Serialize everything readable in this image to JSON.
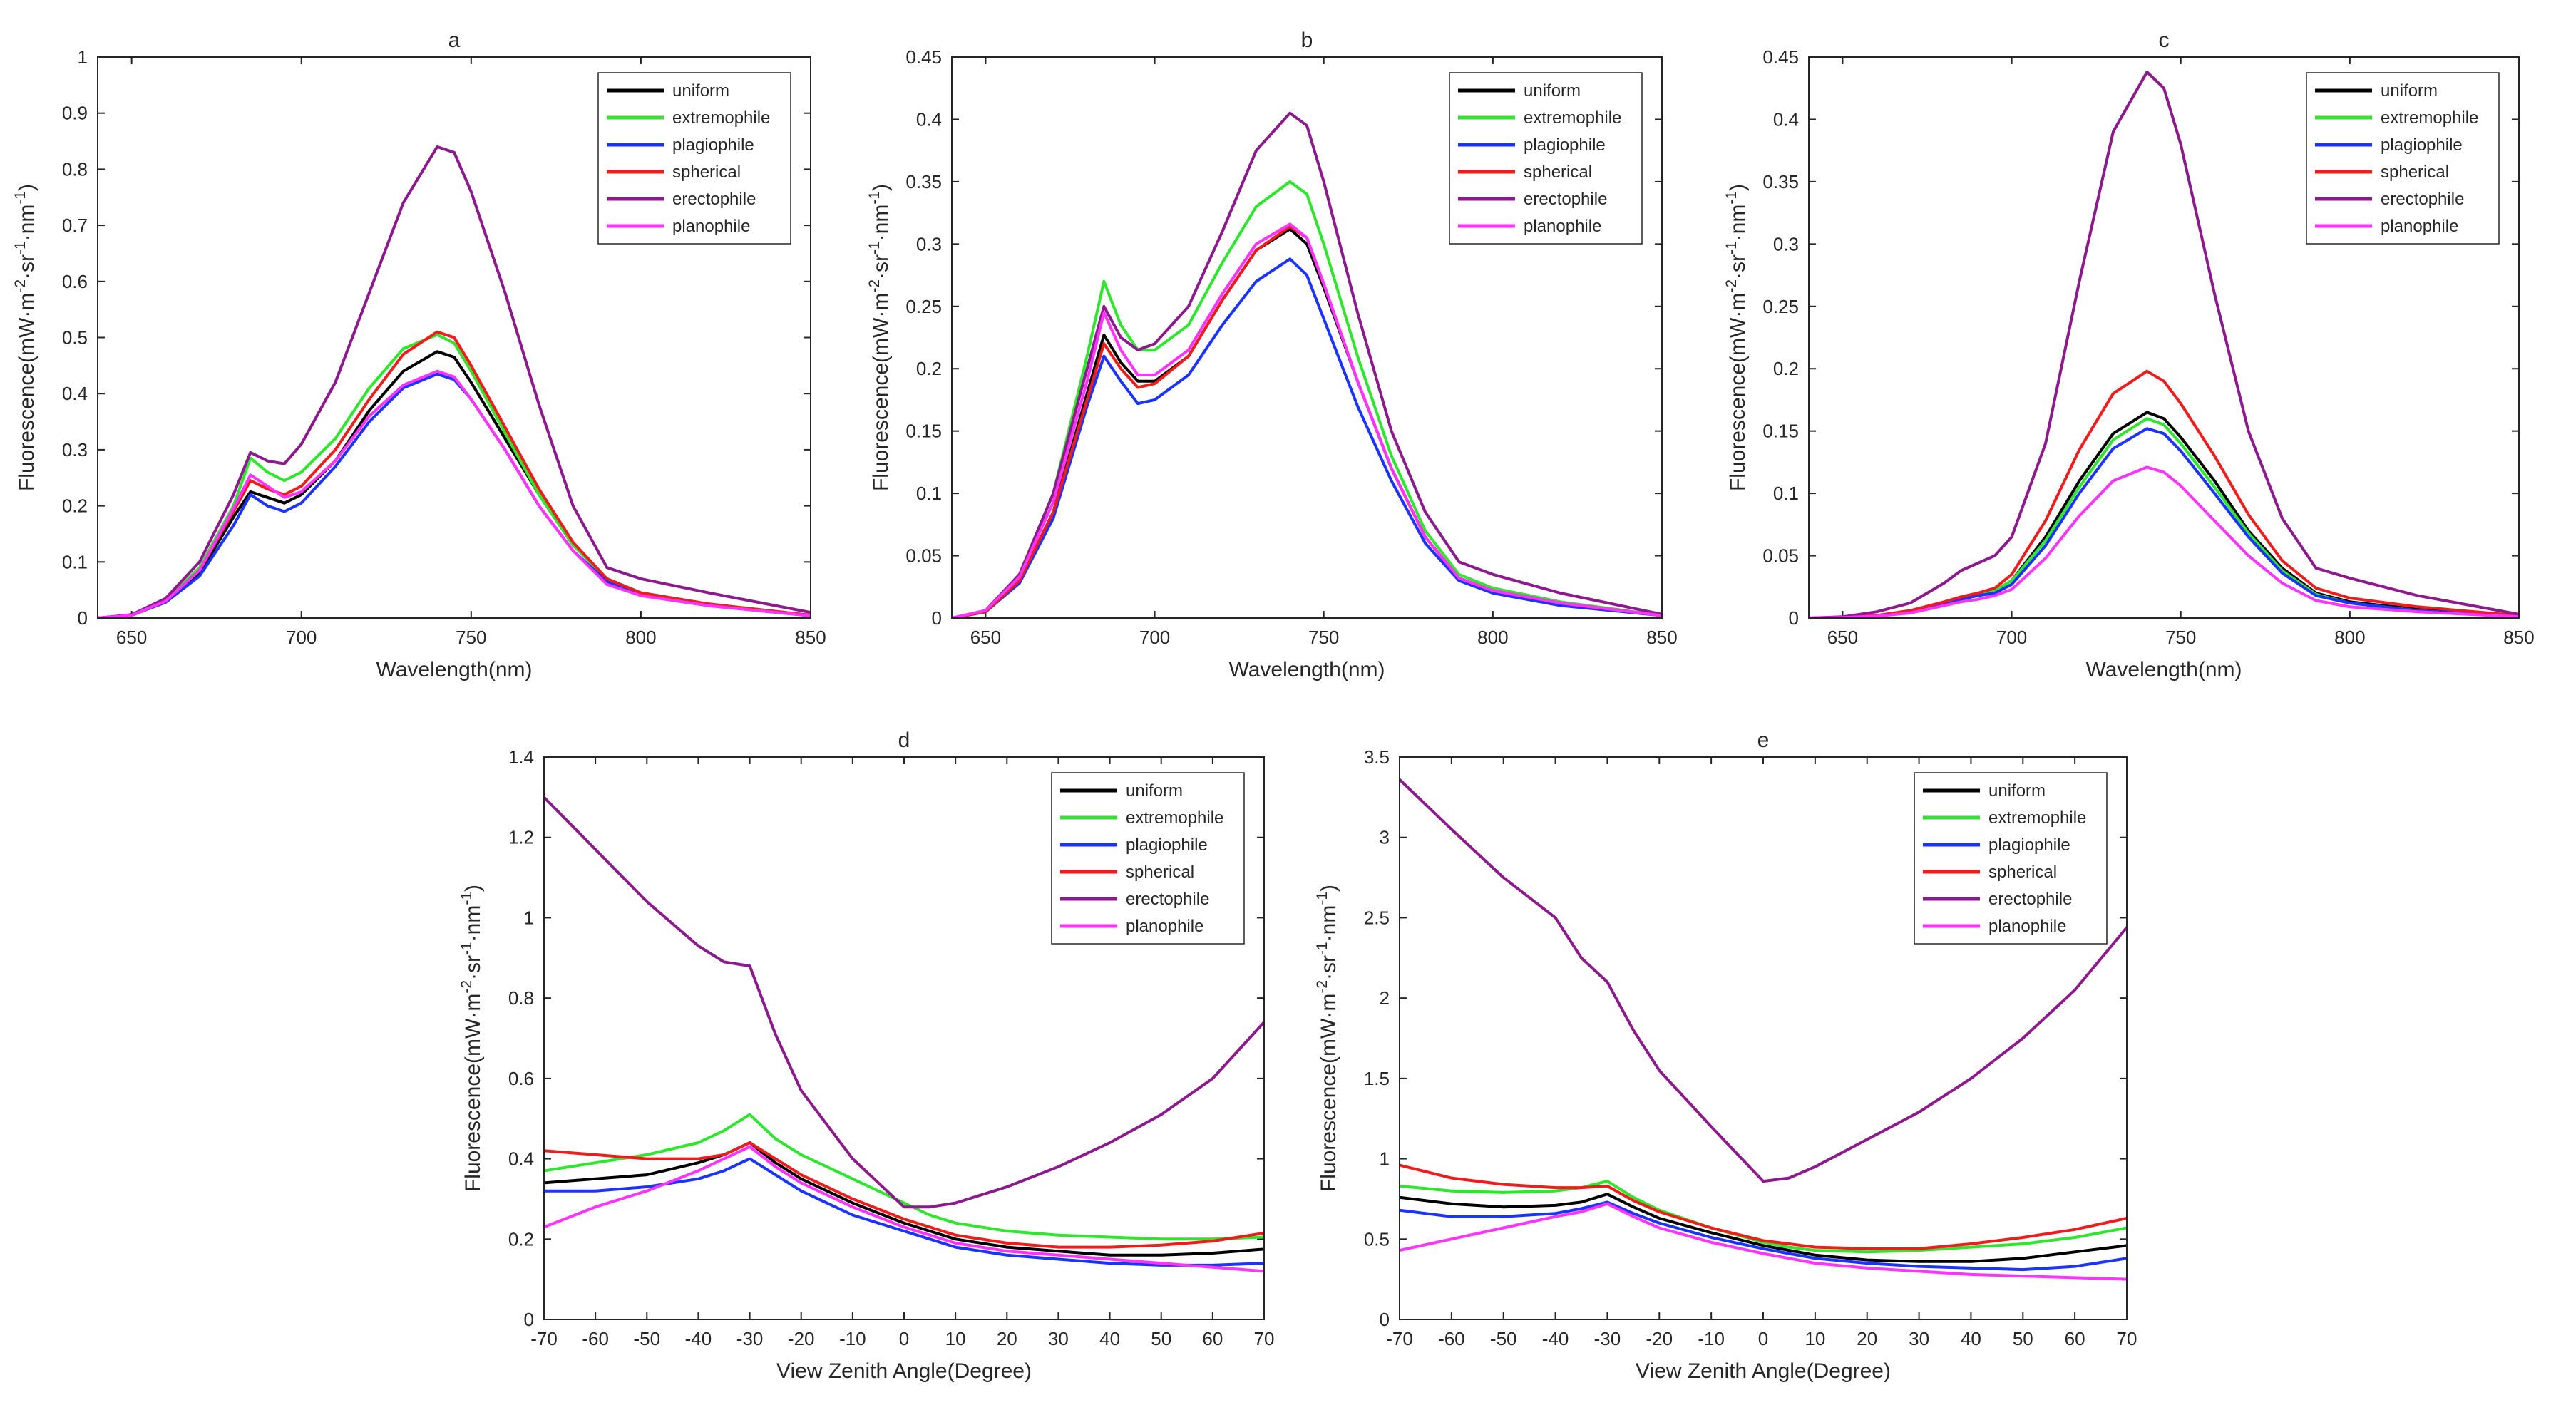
{
  "figure": {
    "legend_entries": [
      "uniform",
      "extremophile",
      "plagiophile",
      "spherical",
      "erectophile",
      "planophile"
    ],
    "legend_colors": [
      "#000000",
      "#2ee62e",
      "#1a33ff",
      "#f01c1c",
      "#8c1a8c",
      "#ff33ff"
    ]
  },
  "chart_data": [
    {
      "type": "line",
      "title": "a",
      "xlabel": "Wavelength(nm)",
      "ylabel": "Fluorescence(mW·m⁻²·sr⁻¹·nm⁻¹)",
      "xlim": [
        640,
        850
      ],
      "ylim": [
        0,
        1
      ],
      "xticks": [
        650,
        700,
        750,
        800,
        850
      ],
      "yticks": [
        0,
        0.1,
        0.2,
        0.3,
        0.4,
        0.5,
        0.6,
        0.7,
        0.8,
        0.9,
        1
      ],
      "legend_position": "top-right",
      "x": [
        640,
        650,
        660,
        670,
        680,
        685,
        690,
        695,
        700,
        710,
        720,
        730,
        740,
        745,
        750,
        760,
        770,
        780,
        790,
        800,
        820,
        850
      ],
      "series": [
        {
          "name": "uniform",
          "color": "#000000",
          "values": [
            0,
            0.005,
            0.03,
            0.08,
            0.18,
            0.225,
            0.215,
            0.205,
            0.22,
            0.28,
            0.37,
            0.44,
            0.475,
            0.465,
            0.42,
            0.32,
            0.22,
            0.13,
            0.07,
            0.045,
            0.025,
            0.005
          ]
        },
        {
          "name": "extremophile",
          "color": "#2ee62e",
          "values": [
            0,
            0.005,
            0.032,
            0.09,
            0.2,
            0.285,
            0.26,
            0.245,
            0.26,
            0.32,
            0.41,
            0.48,
            0.505,
            0.49,
            0.44,
            0.33,
            0.22,
            0.13,
            0.07,
            0.045,
            0.025,
            0.005
          ]
        },
        {
          "name": "plagiophile",
          "color": "#1a33ff",
          "values": [
            0,
            0.005,
            0.028,
            0.075,
            0.165,
            0.22,
            0.2,
            0.19,
            0.205,
            0.27,
            0.35,
            0.41,
            0.435,
            0.425,
            0.39,
            0.3,
            0.2,
            0.12,
            0.065,
            0.04,
            0.022,
            0.004
          ]
        },
        {
          "name": "spherical",
          "color": "#f01c1c",
          "values": [
            0,
            0.005,
            0.03,
            0.085,
            0.19,
            0.245,
            0.23,
            0.22,
            0.235,
            0.3,
            0.39,
            0.47,
            0.51,
            0.5,
            0.45,
            0.34,
            0.23,
            0.135,
            0.07,
            0.045,
            0.025,
            0.005
          ]
        },
        {
          "name": "erectophile",
          "color": "#8c1a8c",
          "values": [
            0,
            0.006,
            0.035,
            0.1,
            0.22,
            0.295,
            0.28,
            0.275,
            0.31,
            0.42,
            0.58,
            0.74,
            0.84,
            0.83,
            0.76,
            0.58,
            0.38,
            0.2,
            0.09,
            0.07,
            0.045,
            0.01
          ]
        },
        {
          "name": "planophile",
          "color": "#ff33ff",
          "values": [
            0,
            0.005,
            0.03,
            0.085,
            0.195,
            0.255,
            0.235,
            0.215,
            0.225,
            0.28,
            0.36,
            0.415,
            0.44,
            0.43,
            0.39,
            0.3,
            0.2,
            0.12,
            0.06,
            0.04,
            0.022,
            0.004
          ]
        }
      ]
    },
    {
      "type": "line",
      "title": "b",
      "xlabel": "Wavelength(nm)",
      "ylabel": "Fluorescence(mW·m⁻²·sr⁻¹·nm⁻¹)",
      "xlim": [
        640,
        850
      ],
      "ylim": [
        0,
        0.45
      ],
      "xticks": [
        650,
        700,
        750,
        800,
        850
      ],
      "yticks": [
        0,
        0.05,
        0.1,
        0.15,
        0.2,
        0.25,
        0.3,
        0.35,
        0.4,
        0.45
      ],
      "legend_position": "top-right",
      "x": [
        640,
        650,
        660,
        670,
        680,
        685,
        690,
        695,
        700,
        710,
        720,
        730,
        740,
        745,
        750,
        760,
        770,
        780,
        790,
        800,
        820,
        850
      ],
      "series": [
        {
          "name": "uniform",
          "color": "#000000",
          "values": [
            0,
            0.005,
            0.03,
            0.085,
            0.18,
            0.227,
            0.205,
            0.19,
            0.19,
            0.21,
            0.255,
            0.295,
            0.312,
            0.3,
            0.265,
            0.19,
            0.12,
            0.065,
            0.032,
            0.022,
            0.012,
            0.002
          ]
        },
        {
          "name": "extremophile",
          "color": "#2ee62e",
          "values": [
            0,
            0.006,
            0.035,
            0.1,
            0.21,
            0.27,
            0.235,
            0.215,
            0.215,
            0.235,
            0.285,
            0.33,
            0.35,
            0.34,
            0.3,
            0.21,
            0.13,
            0.07,
            0.035,
            0.024,
            0.013,
            0.002
          ]
        },
        {
          "name": "plagiophile",
          "color": "#1a33ff",
          "values": [
            0,
            0.005,
            0.028,
            0.08,
            0.17,
            0.21,
            0.19,
            0.172,
            0.175,
            0.195,
            0.235,
            0.27,
            0.288,
            0.275,
            0.24,
            0.17,
            0.11,
            0.06,
            0.03,
            0.02,
            0.01,
            0.002
          ]
        },
        {
          "name": "spherical",
          "color": "#f01c1c",
          "values": [
            0,
            0.005,
            0.03,
            0.085,
            0.175,
            0.22,
            0.2,
            0.185,
            0.188,
            0.21,
            0.255,
            0.295,
            0.314,
            0.305,
            0.268,
            0.19,
            0.12,
            0.065,
            0.032,
            0.022,
            0.012,
            0.002
          ]
        },
        {
          "name": "erectophile",
          "color": "#8c1a8c",
          "values": [
            0,
            0.006,
            0.035,
            0.1,
            0.2,
            0.25,
            0.225,
            0.215,
            0.22,
            0.25,
            0.31,
            0.375,
            0.405,
            0.395,
            0.35,
            0.245,
            0.15,
            0.085,
            0.045,
            0.035,
            0.02,
            0.003
          ]
        },
        {
          "name": "planophile",
          "color": "#ff33ff",
          "values": [
            0,
            0.006,
            0.033,
            0.093,
            0.19,
            0.245,
            0.215,
            0.195,
            0.195,
            0.215,
            0.26,
            0.3,
            0.316,
            0.305,
            0.268,
            0.19,
            0.12,
            0.065,
            0.032,
            0.022,
            0.012,
            0.002
          ]
        }
      ]
    },
    {
      "type": "line",
      "title": "c",
      "xlabel": "Wavelength(nm)",
      "ylabel": "Fluorescence(mW·m⁻²·sr⁻¹·nm⁻¹)",
      "xlim": [
        640,
        850
      ],
      "ylim": [
        0,
        0.45
      ],
      "xticks": [
        650,
        700,
        750,
        800,
        850
      ],
      "yticks": [
        0,
        0.05,
        0.1,
        0.15,
        0.2,
        0.25,
        0.3,
        0.35,
        0.4,
        0.45
      ],
      "legend_position": "top-right",
      "x": [
        640,
        650,
        660,
        670,
        680,
        685,
        690,
        695,
        700,
        710,
        720,
        730,
        740,
        745,
        750,
        760,
        770,
        780,
        790,
        800,
        820,
        850
      ],
      "series": [
        {
          "name": "uniform",
          "color": "#000000",
          "values": [
            0,
            0.0005,
            0.002,
            0.005,
            0.012,
            0.016,
            0.019,
            0.022,
            0.03,
            0.065,
            0.11,
            0.148,
            0.165,
            0.16,
            0.145,
            0.11,
            0.07,
            0.04,
            0.02,
            0.013,
            0.007,
            0.001
          ]
        },
        {
          "name": "extremophile",
          "color": "#2ee62e",
          "values": [
            0,
            0.0005,
            0.002,
            0.005,
            0.012,
            0.016,
            0.019,
            0.022,
            0.03,
            0.062,
            0.105,
            0.143,
            0.16,
            0.155,
            0.14,
            0.105,
            0.068,
            0.038,
            0.019,
            0.012,
            0.006,
            0.001
          ]
        },
        {
          "name": "plagiophile",
          "color": "#1a33ff",
          "values": [
            0,
            0.0005,
            0.002,
            0.005,
            0.011,
            0.015,
            0.018,
            0.02,
            0.027,
            0.058,
            0.1,
            0.136,
            0.152,
            0.148,
            0.134,
            0.1,
            0.065,
            0.036,
            0.018,
            0.012,
            0.006,
            0.001
          ]
        },
        {
          "name": "spherical",
          "color": "#f01c1c",
          "values": [
            0,
            0.0005,
            0.002,
            0.006,
            0.013,
            0.017,
            0.02,
            0.024,
            0.035,
            0.078,
            0.135,
            0.18,
            0.198,
            0.19,
            0.172,
            0.13,
            0.083,
            0.046,
            0.024,
            0.016,
            0.009,
            0.002
          ]
        },
        {
          "name": "erectophile",
          "color": "#8c1a8c",
          "values": [
            0,
            0.001,
            0.005,
            0.012,
            0.028,
            0.038,
            0.044,
            0.05,
            0.065,
            0.14,
            0.27,
            0.39,
            0.438,
            0.425,
            0.38,
            0.26,
            0.15,
            0.08,
            0.04,
            0.032,
            0.018,
            0.003
          ]
        },
        {
          "name": "planophile",
          "color": "#ff33ff",
          "values": [
            0,
            0.0004,
            0.0015,
            0.004,
            0.01,
            0.013,
            0.015,
            0.018,
            0.023,
            0.048,
            0.082,
            0.11,
            0.121,
            0.117,
            0.106,
            0.078,
            0.05,
            0.028,
            0.014,
            0.009,
            0.005,
            0.001
          ]
        }
      ]
    },
    {
      "type": "line",
      "title": "d",
      "xlabel": "View Zenith Angle(Degree)",
      "ylabel": "Fluorescence(mW·m⁻²·sr⁻¹·nm⁻¹)",
      "xlim": [
        -70,
        70
      ],
      "ylim": [
        0,
        1.4
      ],
      "xticks": [
        -70,
        -60,
        -50,
        -40,
        -30,
        -20,
        -10,
        0,
        10,
        20,
        30,
        40,
        50,
        60,
        70
      ],
      "yticks": [
        0,
        0.2,
        0.4,
        0.6,
        0.8,
        1,
        1.2,
        1.4
      ],
      "legend_position": "top-right",
      "x": [
        -70,
        -60,
        -50,
        -40,
        -35,
        -30,
        -25,
        -20,
        -10,
        0,
        5,
        10,
        20,
        30,
        40,
        50,
        60,
        70
      ],
      "series": [
        {
          "name": "uniform",
          "color": "#000000",
          "values": [
            0.34,
            0.35,
            0.36,
            0.39,
            0.41,
            0.44,
            0.39,
            0.35,
            0.29,
            0.24,
            0.22,
            0.2,
            0.18,
            0.17,
            0.16,
            0.16,
            0.165,
            0.175
          ]
        },
        {
          "name": "extremophile",
          "color": "#2ee62e",
          "values": [
            0.37,
            0.39,
            0.41,
            0.44,
            0.47,
            0.51,
            0.45,
            0.41,
            0.35,
            0.29,
            0.26,
            0.24,
            0.22,
            0.21,
            0.205,
            0.2,
            0.2,
            0.205
          ]
        },
        {
          "name": "plagiophile",
          "color": "#1a33ff",
          "values": [
            0.32,
            0.32,
            0.33,
            0.35,
            0.37,
            0.4,
            0.36,
            0.32,
            0.26,
            0.22,
            0.2,
            0.18,
            0.16,
            0.15,
            0.14,
            0.135,
            0.135,
            0.14
          ]
        },
        {
          "name": "spherical",
          "color": "#f01c1c",
          "values": [
            0.42,
            0.41,
            0.4,
            0.4,
            0.41,
            0.44,
            0.4,
            0.36,
            0.3,
            0.25,
            0.23,
            0.21,
            0.19,
            0.18,
            0.18,
            0.185,
            0.195,
            0.215
          ]
        },
        {
          "name": "erectophile",
          "color": "#8c1a8c",
          "values": [
            1.3,
            1.17,
            1.04,
            0.93,
            0.89,
            0.88,
            0.71,
            0.57,
            0.4,
            0.28,
            0.28,
            0.29,
            0.33,
            0.38,
            0.44,
            0.51,
            0.6,
            0.74
          ]
        },
        {
          "name": "planophile",
          "color": "#ff33ff",
          "values": [
            0.23,
            0.28,
            0.32,
            0.37,
            0.4,
            0.43,
            0.38,
            0.34,
            0.28,
            0.23,
            0.21,
            0.19,
            0.17,
            0.16,
            0.15,
            0.14,
            0.13,
            0.12
          ]
        }
      ]
    },
    {
      "type": "line",
      "title": "e",
      "xlabel": "View Zenith Angle(Degree)",
      "ylabel": "Fluorescence(mW·m⁻²·sr⁻¹·nm⁻¹)",
      "xlim": [
        -70,
        70
      ],
      "ylim": [
        0,
        3.5
      ],
      "xticks": [
        -70,
        -60,
        -50,
        -40,
        -30,
        -20,
        -10,
        0,
        10,
        20,
        30,
        40,
        50,
        60,
        70
      ],
      "yticks": [
        0,
        0.5,
        1,
        1.5,
        2,
        2.5,
        3,
        3.5
      ],
      "legend_position": "top-right",
      "x": [
        -70,
        -60,
        -50,
        -40,
        -35,
        -30,
        -25,
        -20,
        -10,
        0,
        5,
        10,
        20,
        30,
        40,
        50,
        60,
        70
      ],
      "series": [
        {
          "name": "uniform",
          "color": "#000000",
          "values": [
            0.76,
            0.72,
            0.7,
            0.71,
            0.73,
            0.78,
            0.7,
            0.63,
            0.54,
            0.46,
            0.43,
            0.4,
            0.37,
            0.36,
            0.36,
            0.38,
            0.42,
            0.46
          ]
        },
        {
          "name": "extremophile",
          "color": "#2ee62e",
          "values": [
            0.83,
            0.8,
            0.79,
            0.8,
            0.82,
            0.86,
            0.76,
            0.68,
            0.57,
            0.48,
            0.45,
            0.43,
            0.42,
            0.43,
            0.45,
            0.47,
            0.51,
            0.57
          ]
        },
        {
          "name": "plagiophile",
          "color": "#1a33ff",
          "values": [
            0.68,
            0.64,
            0.64,
            0.66,
            0.69,
            0.73,
            0.66,
            0.6,
            0.51,
            0.44,
            0.41,
            0.38,
            0.35,
            0.33,
            0.32,
            0.31,
            0.33,
            0.38
          ]
        },
        {
          "name": "spherical",
          "color": "#f01c1c",
          "values": [
            0.96,
            0.88,
            0.84,
            0.82,
            0.82,
            0.83,
            0.74,
            0.67,
            0.57,
            0.49,
            0.47,
            0.45,
            0.44,
            0.44,
            0.47,
            0.51,
            0.56,
            0.63
          ]
        },
        {
          "name": "erectophile",
          "color": "#8c1a8c",
          "values": [
            3.36,
            3.05,
            2.75,
            2.5,
            2.25,
            2.1,
            1.8,
            1.55,
            1.2,
            0.86,
            0.88,
            0.95,
            1.12,
            1.29,
            1.5,
            1.75,
            2.05,
            2.44
          ]
        },
        {
          "name": "planophile",
          "color": "#ff33ff",
          "values": [
            0.43,
            0.5,
            0.57,
            0.64,
            0.67,
            0.72,
            0.64,
            0.57,
            0.48,
            0.41,
            0.38,
            0.35,
            0.32,
            0.3,
            0.28,
            0.27,
            0.26,
            0.25
          ]
        }
      ]
    }
  ]
}
